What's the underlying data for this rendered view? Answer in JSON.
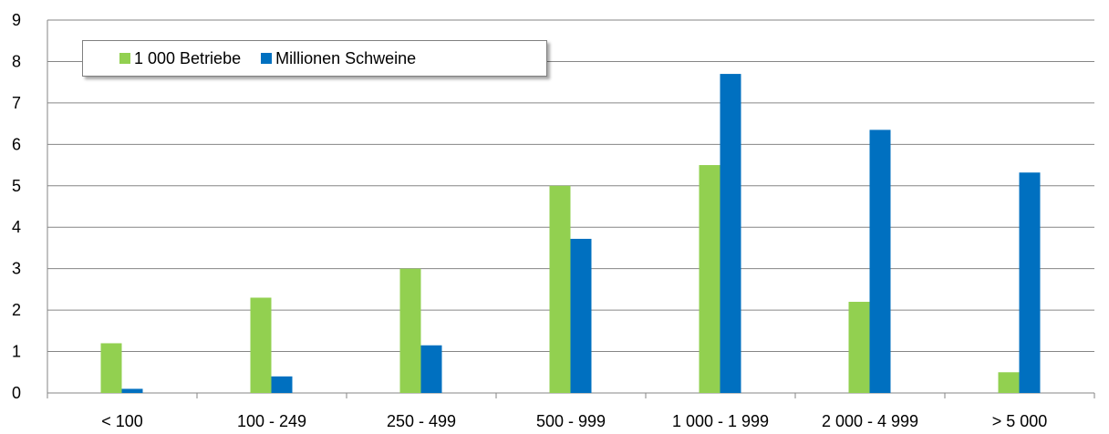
{
  "chart_data": {
    "type": "bar",
    "categories": [
      "< 100",
      "100 - 249",
      "250 - 499",
      "500 - 999",
      "1 000 - 1 999",
      "2 000 - 4 999",
      "> 5 000"
    ],
    "series": [
      {
        "name": "1 000 Betriebe",
        "color": "#92D050",
        "values": [
          1.2,
          2.3,
          3.0,
          5.0,
          5.5,
          2.2,
          0.5
        ]
      },
      {
        "name": "Millionen Schweine",
        "color": "#0070C0",
        "values": [
          0.1,
          0.4,
          1.15,
          3.72,
          7.7,
          6.35,
          5.32
        ]
      }
    ],
    "ylim": [
      0,
      9
    ],
    "yticks": [
      "0",
      "1",
      "2",
      "3",
      "4",
      "5",
      "6",
      "7",
      "8",
      "9"
    ],
    "grid": true,
    "legend": "top-left"
  }
}
